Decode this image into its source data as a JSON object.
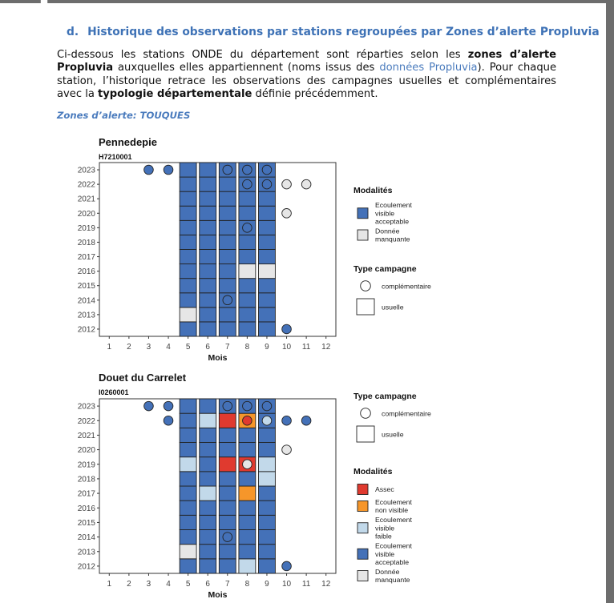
{
  "section": {
    "letter": "d.",
    "title": "Historique des observations par stations regroupées par Zones d’alerte Propluvia"
  },
  "intro": {
    "p1": "Ci-dessous les stations ONDE du département sont réparties selon les ",
    "b1": "zones d’alerte Propluvia",
    "p2": " auxquelles elles appartiennent (noms issus des ",
    "link": "données Propluvia",
    "p3": "). Pour chaque station, l’historique retrace les observations des campagnes usuelles et complémentaires avec la ",
    "b2": "typologie départementale",
    "p4": " définie précédemment."
  },
  "zone_label": "Zones d’alerte: TOUQUES",
  "colors": {
    "assec": "#e03a2f",
    "ecoulement_non_visible": "#f6962a",
    "ecoulement_visible_faible": "#c2d9ea",
    "ecoulement_visible_acceptable": "#4471b8",
    "donnee_manquante": "#e6e6e6"
  },
  "chart_data": [
    {
      "type": "heatmap",
      "title": "Pennedepie",
      "subtitle": "H7210001",
      "xlabel": "Mois",
      "x": [
        1,
        2,
        3,
        4,
        5,
        6,
        7,
        8,
        9,
        10,
        11,
        12
      ],
      "y": [
        2012,
        2013,
        2014,
        2015,
        2016,
        2017,
        2018,
        2019,
        2020,
        2021,
        2022,
        2023
      ],
      "legend_modalites_title": "Modalités",
      "legend_modalites": [
        {
          "label": "Ecoulement visible acceptable",
          "lines": [
            "Ecoulement",
            "visible",
            "acceptable"
          ],
          "color_key": "ecoulement_visible_acceptable"
        },
        {
          "label": "Donnée manquante",
          "lines": [
            "Donnée",
            "manquante"
          ],
          "color_key": "donnee_manquante"
        }
      ],
      "legend_type_title": "Type campagne",
      "legend_type": [
        {
          "label": "complémentaire"
        },
        {
          "label": "usuelle"
        }
      ],
      "usuelle_default": "ecoulement_visible_acceptable",
      "usuelle_months": [
        5,
        6,
        7,
        8,
        9
      ],
      "usuelle_exceptions": [
        {
          "month": 5,
          "year": 2013,
          "category": "donnee_manquante"
        },
        {
          "month": 8,
          "year": 2016,
          "category": "donnee_manquante"
        },
        {
          "month": 9,
          "year": 2016,
          "category": "donnee_manquante"
        }
      ],
      "complementaire": [
        {
          "month": 3,
          "year": 2023,
          "category": "ecoulement_visible_acceptable"
        },
        {
          "month": 4,
          "year": 2023,
          "category": "ecoulement_visible_acceptable"
        },
        {
          "month": 7,
          "year": 2023,
          "category": "ecoulement_visible_acceptable"
        },
        {
          "month": 8,
          "year": 2023,
          "category": "ecoulement_visible_acceptable"
        },
        {
          "month": 9,
          "year": 2023,
          "category": "ecoulement_visible_acceptable"
        },
        {
          "month": 8,
          "year": 2022,
          "category": "ecoulement_visible_acceptable"
        },
        {
          "month": 9,
          "year": 2022,
          "category": "ecoulement_visible_acceptable"
        },
        {
          "month": 10,
          "year": 2022,
          "category": "donnee_manquante"
        },
        {
          "month": 11,
          "year": 2022,
          "category": "donnee_manquante"
        },
        {
          "month": 10,
          "year": 2020,
          "category": "donnee_manquante"
        },
        {
          "month": 8,
          "year": 2019,
          "category": "ecoulement_visible_acceptable"
        },
        {
          "month": 7,
          "year": 2014,
          "category": "ecoulement_visible_acceptable"
        },
        {
          "month": 10,
          "year": 2012,
          "category": "ecoulement_visible_acceptable"
        }
      ]
    },
    {
      "type": "heatmap",
      "title": "Douet du Carrelet",
      "subtitle": "I0260001",
      "xlabel": "Mois",
      "x": [
        1,
        2,
        3,
        4,
        5,
        6,
        7,
        8,
        9,
        10,
        11,
        12
      ],
      "y": [
        2012,
        2013,
        2014,
        2015,
        2016,
        2017,
        2018,
        2019,
        2020,
        2021,
        2022,
        2023
      ],
      "legend_type_title": "Type campagne",
      "legend_type": [
        {
          "label": "complémentaire"
        },
        {
          "label": "usuelle"
        }
      ],
      "legend_modalites_title": "Modalités",
      "legend_modalites": [
        {
          "label": "Assec",
          "lines": [
            "Assec"
          ],
          "color_key": "assec"
        },
        {
          "label": "Ecoulement non visible",
          "lines": [
            "Ecoulement",
            "non visible"
          ],
          "color_key": "ecoulement_non_visible"
        },
        {
          "label": "Ecoulement visible faible",
          "lines": [
            "Ecoulement",
            "visible",
            "faible"
          ],
          "color_key": "ecoulement_visible_faible"
        },
        {
          "label": "Ecoulement visible acceptable",
          "lines": [
            "Ecoulement",
            "visible",
            "acceptable"
          ],
          "color_key": "ecoulement_visible_acceptable"
        },
        {
          "label": "Donnée manquante",
          "lines": [
            "Donnée",
            "manquante"
          ],
          "color_key": "donnee_manquante"
        }
      ],
      "usuelle_default": "ecoulement_visible_acceptable",
      "usuelle_months": [
        5,
        6,
        7,
        8,
        9
      ],
      "usuelle_exceptions": [
        {
          "month": 6,
          "year": 2022,
          "category": "ecoulement_visible_faible"
        },
        {
          "month": 7,
          "year": 2022,
          "category": "assec"
        },
        {
          "month": 8,
          "year": 2022,
          "category": "ecoulement_non_visible"
        },
        {
          "month": 5,
          "year": 2019,
          "category": "ecoulement_visible_faible"
        },
        {
          "month": 7,
          "year": 2019,
          "category": "assec"
        },
        {
          "month": 8,
          "year": 2019,
          "category": "assec"
        },
        {
          "month": 9,
          "year": 2019,
          "category": "ecoulement_visible_faible"
        },
        {
          "month": 9,
          "year": 2018,
          "category": "ecoulement_visible_faible"
        },
        {
          "month": 6,
          "year": 2017,
          "category": "ecoulement_visible_faible"
        },
        {
          "month": 8,
          "year": 2017,
          "category": "ecoulement_non_visible"
        },
        {
          "month": 5,
          "year": 2013,
          "category": "donnee_manquante"
        },
        {
          "month": 8,
          "year": 2012,
          "category": "ecoulement_visible_faible"
        }
      ],
      "complementaire": [
        {
          "month": 3,
          "year": 2023,
          "category": "ecoulement_visible_acceptable"
        },
        {
          "month": 4,
          "year": 2023,
          "category": "ecoulement_visible_acceptable"
        },
        {
          "month": 7,
          "year": 2023,
          "category": "ecoulement_visible_acceptable"
        },
        {
          "month": 8,
          "year": 2023,
          "category": "ecoulement_visible_acceptable"
        },
        {
          "month": 9,
          "year": 2023,
          "category": "ecoulement_visible_acceptable"
        },
        {
          "month": 4,
          "year": 2022,
          "category": "ecoulement_visible_acceptable"
        },
        {
          "month": 8,
          "year": 2022,
          "category": "assec"
        },
        {
          "month": 9,
          "year": 2022,
          "category": "ecoulement_visible_faible"
        },
        {
          "month": 10,
          "year": 2022,
          "category": "ecoulement_visible_acceptable"
        },
        {
          "month": 11,
          "year": 2022,
          "category": "ecoulement_visible_acceptable"
        },
        {
          "month": 10,
          "year": 2020,
          "category": "donnee_manquante"
        },
        {
          "month": 8,
          "year": 2019,
          "category": "donnee_manquante"
        },
        {
          "month": 7,
          "year": 2014,
          "category": "ecoulement_visible_acceptable"
        },
        {
          "month": 10,
          "year": 2012,
          "category": "ecoulement_visible_acceptable"
        }
      ]
    }
  ]
}
